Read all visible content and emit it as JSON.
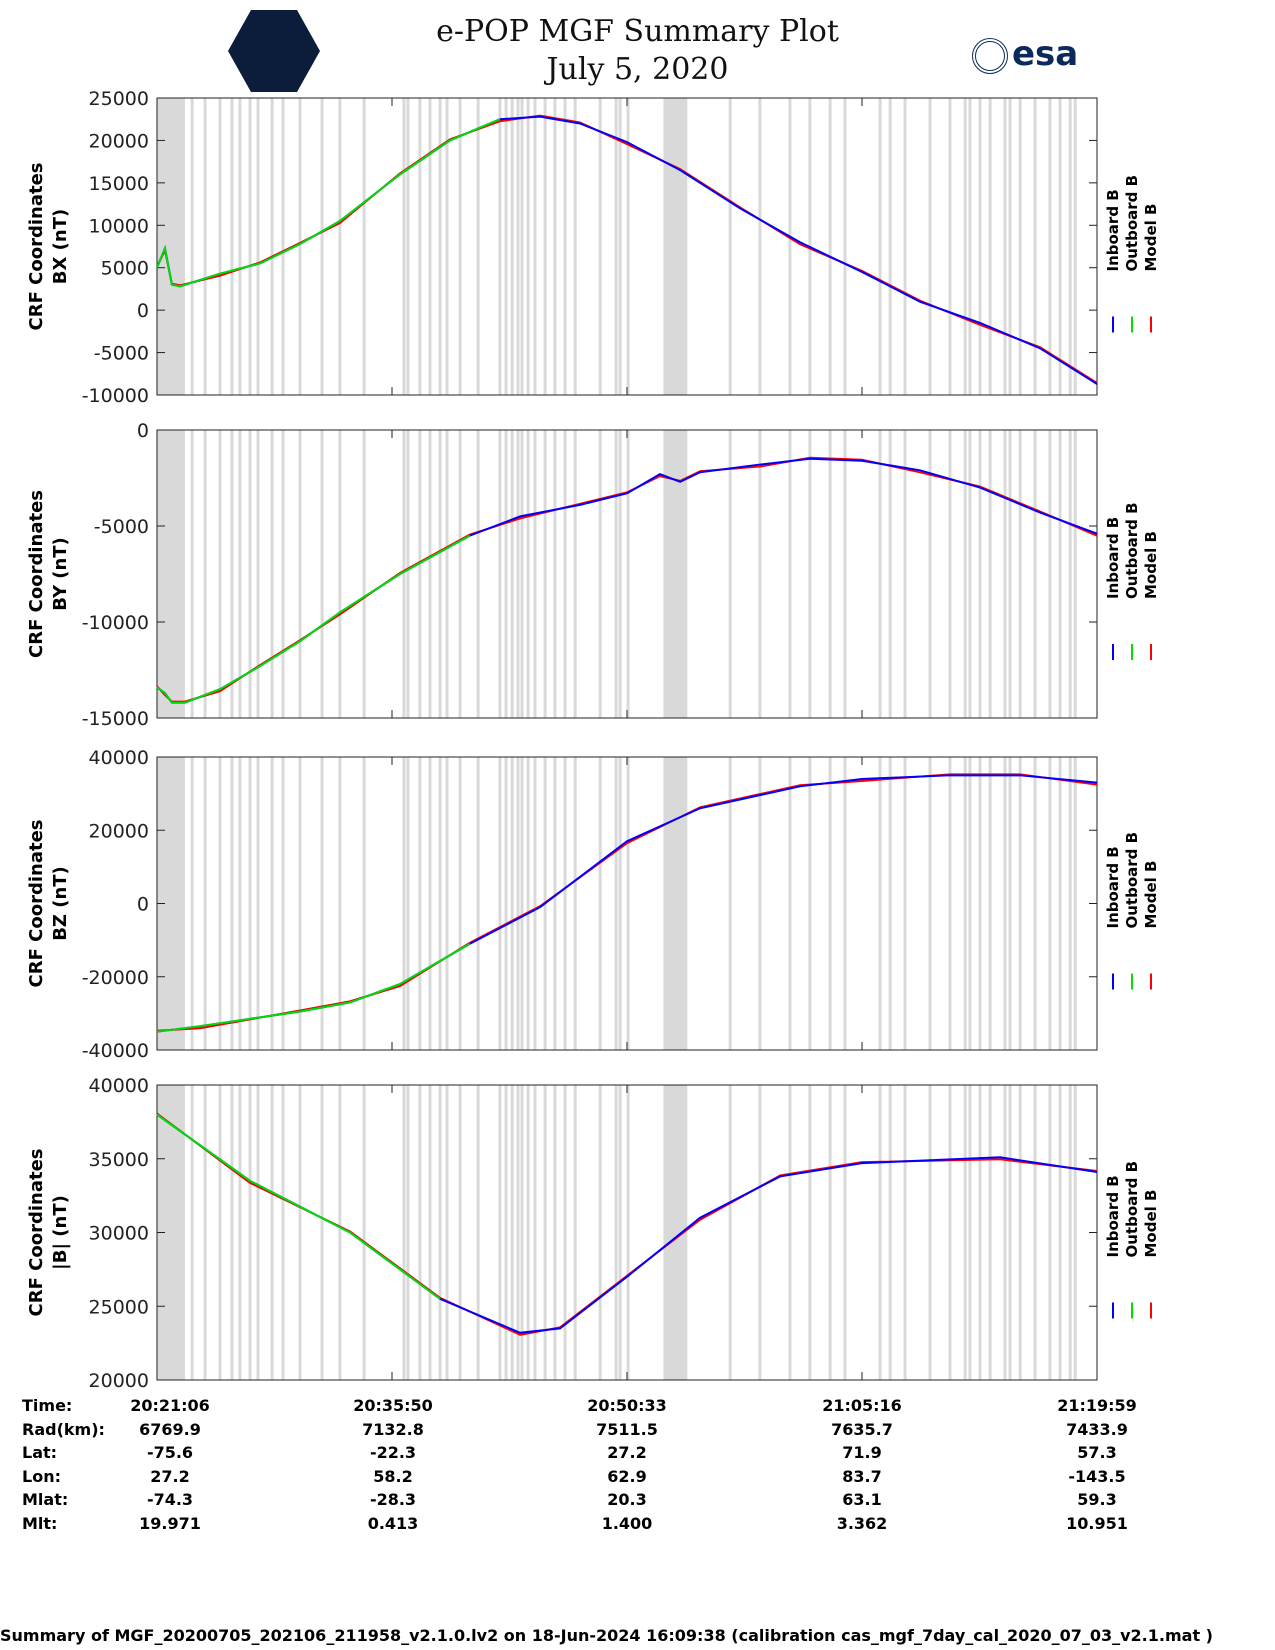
{
  "header": {
    "title": "e-POP MGF Summary Plot",
    "date": "July 5, 2020",
    "logo_left": "CASSIOPE",
    "logo_right": "esa"
  },
  "colors": {
    "inboard": "#0000ff",
    "outboard": "#00dd00",
    "model": "#ff0000",
    "gap": "#d9d9d9"
  },
  "chart_data": {
    "type": "line",
    "x_unit": "seconds since 20:21:06",
    "xlim": [
      0,
      3536
    ],
    "x_ticks": [
      0,
      884,
      1768,
      2652,
      3536
    ],
    "legend": [
      "Inboard B",
      "Outboard B",
      "Model B"
    ],
    "gaps_blocks": [
      [
        0,
        105
      ],
      [
        1905,
        1995
      ]
    ],
    "gap_lines": [
      132,
      181,
      237,
      282,
      312,
      350,
      380,
      433,
      474,
      538,
      621,
      688,
      779,
      929,
      944,
      989,
      1027,
      1065,
      1091,
      1140,
      1208,
      1290,
      1313,
      1336,
      1358,
      1373,
      1396,
      1422,
      1460,
      1497,
      1535,
      1573,
      1667,
      1727,
      1742,
      1772,
      2156,
      2268,
      2381,
      2456,
      2532,
      2588,
      2720,
      2758,
      2814,
      2908,
      2983,
      3040,
      3058,
      3096,
      3134,
      3190,
      3209,
      3247,
      3303,
      3359,
      3397,
      3435,
      3454
    ],
    "panels": [
      {
        "ylabel1": "CRF Coordinates",
        "ylabel2": "BX (nT)",
        "ylim": [
          -10000,
          25000
        ],
        "yticks": [
          -10000,
          -5000,
          0,
          5000,
          10000,
          15000,
          20000,
          25000
        ],
        "x": [
          0,
          30,
          56,
          87,
          237,
          387,
          538,
          688,
          914,
          1102,
          1290,
          1441,
          1591,
          1768,
          1968,
          2193,
          2419,
          2652,
          2870,
          3096,
          3322,
          3536
        ],
        "y": [
          5000,
          7300,
          3000,
          2800,
          4300,
          5500,
          7800,
          10500,
          16000,
          20000,
          22500,
          22800,
          22000,
          19800,
          16500,
          12000,
          8000,
          4500,
          1000,
          -1500,
          -4500,
          -8700
        ],
        "green_until": 1290
      },
      {
        "ylabel1": "CRF Coordinates",
        "ylabel2": "BY (nT)",
        "ylim": [
          -15000,
          0
        ],
        "yticks": [
          -15000,
          -10000,
          -5000,
          0
        ],
        "x": [
          0,
          30,
          56,
          105,
          237,
          387,
          538,
          688,
          914,
          1177,
          1366,
          1591,
          1768,
          1892,
          1968,
          2043,
          2268,
          2456,
          2652,
          2870,
          3096,
          3322,
          3536
        ],
        "y": [
          -13400,
          -13700,
          -14200,
          -14200,
          -13500,
          -12300,
          -11000,
          -9500,
          -7500,
          -5500,
          -4500,
          -3900,
          -3300,
          -2300,
          -2700,
          -2200,
          -1800,
          -1500,
          -1600,
          -2100,
          -3000,
          -4300,
          -5400
        ],
        "green_until": 1177
      },
      {
        "ylabel1": "CRF Coordinates",
        "ylabel2": "BZ (nT)",
        "ylim": [
          -40000,
          40000
        ],
        "yticks": [
          -40000,
          -20000,
          0,
          20000,
          40000
        ],
        "x": [
          0,
          162,
          538,
          726,
          914,
          1177,
          1441,
          1768,
          2043,
          2419,
          2652,
          2983,
          3246,
          3536
        ],
        "y": [
          -35000,
          -33500,
          -29500,
          -27000,
          -22000,
          -11000,
          -1000,
          17000,
          26000,
          32000,
          34000,
          35000,
          35000,
          33000
        ],
        "green_until": 1177
      },
      {
        "ylabel1": "CRF Coordinates",
        "ylabel2": "|B| (nT)",
        "ylim": [
          20000,
          40000
        ],
        "yticks": [
          20000,
          25000,
          30000,
          35000,
          40000
        ],
        "x": [
          0,
          350,
          726,
          1065,
          1366,
          1516,
          1768,
          2043,
          2344,
          2652,
          3171,
          3536
        ],
        "y": [
          38000,
          33500,
          30000,
          25500,
          23200,
          23500,
          27000,
          31000,
          33800,
          34700,
          35100,
          34100
        ],
        "green_until": 1065
      }
    ]
  },
  "table": {
    "labels": [
      "Time:",
      "Rad(km):",
      "Lat:",
      "Lon:",
      "Mlat:",
      "Mlt:"
    ],
    "columns": [
      [
        "20:21:06",
        "6769.9",
        "-75.6",
        "27.2",
        "-74.3",
        "19.971"
      ],
      [
        "20:35:50",
        "7132.8",
        "-22.3",
        "58.2",
        "-28.3",
        "0.413"
      ],
      [
        "20:50:33",
        "7511.5",
        "27.2",
        "62.9",
        "20.3",
        "1.400"
      ],
      [
        "21:05:16",
        "7635.7",
        "71.9",
        "83.7",
        "63.1",
        "3.362"
      ],
      [
        "21:19:59",
        "7433.9",
        "57.3",
        "-143.5",
        "59.3",
        "10.951"
      ]
    ]
  },
  "footer": "Summary of MGF_20200705_202106_211958_v2.1.0.lv2 on 18-Jun-2024 16:09:38 (calibration cas_mgf_7day_cal_2020_07_03_v2.1.mat )"
}
